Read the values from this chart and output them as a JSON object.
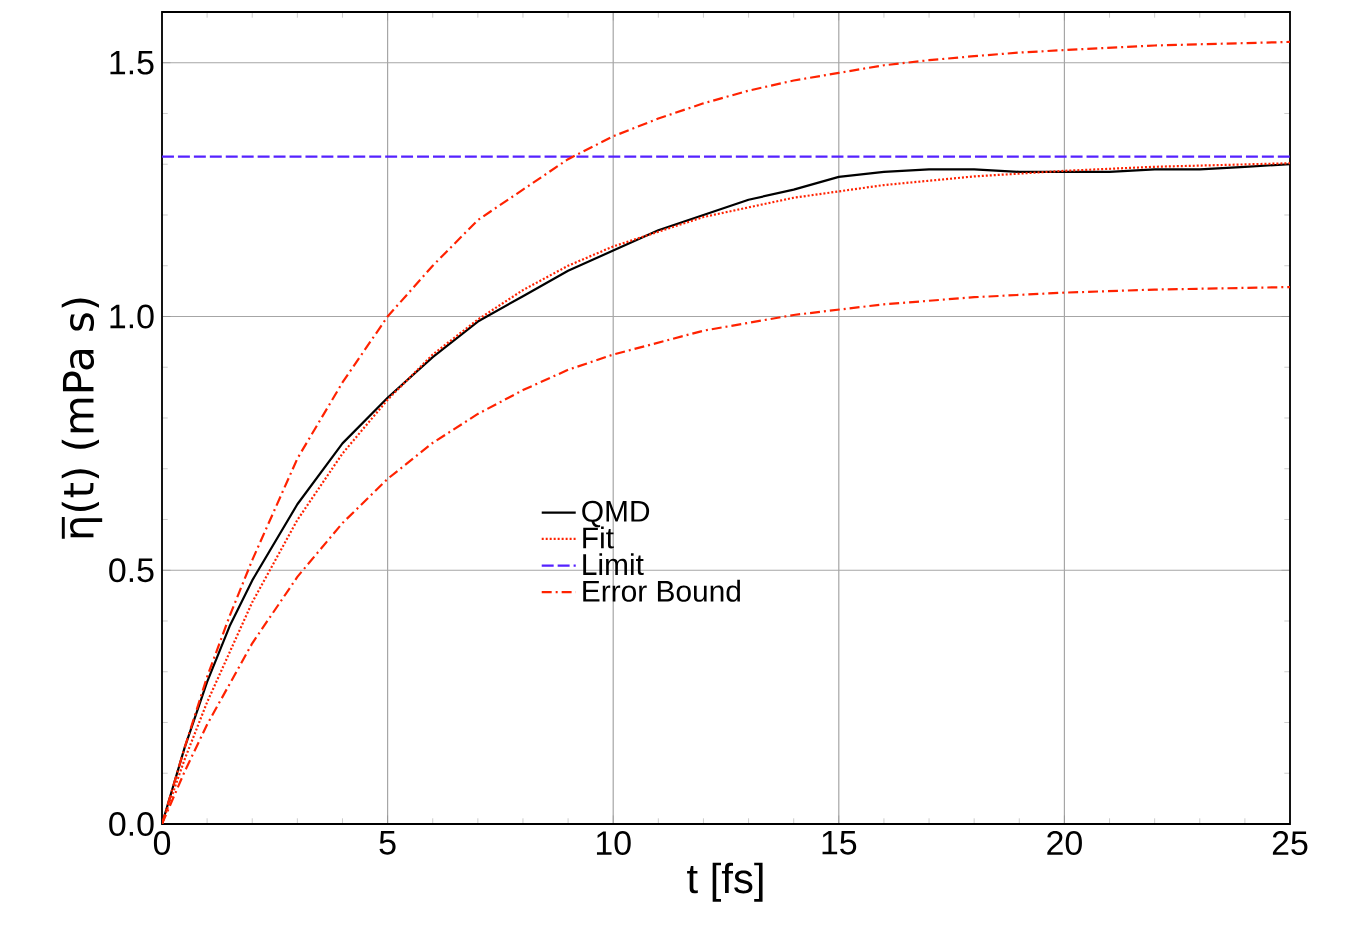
{
  "chart_data": {
    "type": "line",
    "xlabel": "t [fs]",
    "ylabel": "η̅(t) (mPa s)",
    "xlim": [
      0,
      25
    ],
    "ylim": [
      0,
      1.6
    ],
    "xticks": [
      0,
      5,
      10,
      15,
      20,
      25
    ],
    "yticks": [
      {
        "value": 0,
        "label": "0.0"
      },
      {
        "value": 0.5,
        "label": "0.5"
      },
      {
        "value": 1,
        "label": "1.0"
      },
      {
        "value": 1.5,
        "label": "1.5"
      }
    ],
    "grid": true,
    "legend": "center",
    "marker": "none",
    "series": [
      {
        "name": "QMD",
        "color": "#000000",
        "line_style": "solid",
        "x": [
          0,
          0.5,
          1,
          1.5,
          2,
          3,
          4,
          5,
          6,
          7,
          8,
          9,
          10,
          11,
          12,
          13,
          14,
          15,
          16,
          17,
          18,
          19,
          20,
          21,
          22,
          23,
          24,
          25
        ],
        "values": [
          0,
          0.15,
          0.28,
          0.39,
          0.48,
          0.63,
          0.75,
          0.84,
          0.92,
          0.99,
          1.04,
          1.09,
          1.13,
          1.17,
          1.2,
          1.23,
          1.25,
          1.275,
          1.285,
          1.29,
          1.29,
          1.285,
          1.285,
          1.285,
          1.29,
          1.29,
          1.295,
          1.3
        ]
      },
      {
        "name": "Fit",
        "color": "#ff2200",
        "line_style": "dotted",
        "x": [
          0,
          0.5,
          1,
          2,
          3,
          4,
          5,
          6,
          7,
          8,
          9,
          10,
          12,
          14,
          16,
          18,
          20,
          22,
          25
        ],
        "values": [
          0,
          0.127,
          0.24,
          0.437,
          0.599,
          0.73,
          0.836,
          0.925,
          0.994,
          1.052,
          1.1,
          1.138,
          1.196,
          1.234,
          1.259,
          1.276,
          1.287,
          1.295,
          1.302
        ]
      },
      {
        "name": "Limit",
        "color": "#5522ff",
        "line_style": "dashed",
        "x": [
          0,
          25
        ],
        "values": [
          1.315,
          1.315
        ]
      },
      {
        "name": "Error Bound",
        "color": "#ff2200",
        "line_style": "dashdot",
        "x": [
          0,
          0.5,
          1,
          1.5,
          2,
          3,
          4,
          5,
          6,
          7,
          8,
          9,
          10,
          11,
          12,
          13,
          14,
          15,
          16,
          17,
          18,
          19,
          20,
          22,
          25
        ],
        "values": [
          0,
          0.15,
          0.29,
          0.41,
          0.52,
          0.72,
          0.87,
          1.0,
          1.1,
          1.19,
          1.25,
          1.31,
          1.355,
          1.39,
          1.42,
          1.445,
          1.465,
          1.48,
          1.495,
          1.505,
          1.513,
          1.52,
          1.525,
          1.534,
          1.541
        ]
      },
      {
        "color": "#ff2200",
        "line_style": "dashdot",
        "x": [
          0,
          0.5,
          1,
          2,
          3,
          4,
          5,
          6,
          7,
          8,
          9,
          10,
          12,
          14,
          16,
          18,
          20,
          22,
          25
        ],
        "values": [
          0,
          0.103,
          0.196,
          0.356,
          0.487,
          0.593,
          0.68,
          0.751,
          0.808,
          0.855,
          0.895,
          0.925,
          0.972,
          1.003,
          1.024,
          1.038,
          1.047,
          1.053,
          1.058
        ]
      }
    ]
  }
}
